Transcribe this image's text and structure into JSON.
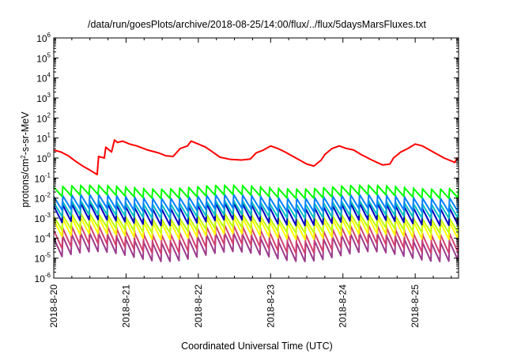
{
  "chart_data": {
    "type": "line",
    "title": "/data/run/goesPlots/archive/2018-08-25/14:00/flux/../flux/5daysMarsFluxes.txt",
    "xlabel": "Coordinated Universal Time (UTC)",
    "ylabel": {
      "pre": "protons/cm",
      "sup": "2",
      "post": "-s-sr-MeV"
    },
    "x_range_days": [
      0,
      5.6
    ],
    "x_ticks": [
      {
        "day": 0,
        "label": "2018-8-20"
      },
      {
        "day": 1,
        "label": "2018-8-21"
      },
      {
        "day": 2,
        "label": "2018-8-22"
      },
      {
        "day": 3,
        "label": "2018-8-23"
      },
      {
        "day": 4,
        "label": "2018-8-24"
      },
      {
        "day": 5,
        "label": "2018-8-25"
      }
    ],
    "y_scale": "log",
    "ylim": [
      1e-06,
      1000000.0
    ],
    "y_ticks": [
      {
        "exp": -6
      },
      {
        "exp": -5
      },
      {
        "exp": -4
      },
      {
        "exp": -3
      },
      {
        "exp": -2
      },
      {
        "exp": -1
      },
      {
        "exp": 0
      },
      {
        "exp": 1
      },
      {
        "exp": 2
      },
      {
        "exp": 3
      },
      {
        "exp": 4
      },
      {
        "exp": 5
      },
      {
        "exp": 6
      }
    ],
    "y_tick_base": "10",
    "grid": false,
    "series": [
      {
        "color": "#ff0000",
        "kind": "smooth",
        "x": [
          0,
          0.1,
          0.2,
          0.3,
          0.4,
          0.5,
          0.6,
          0.62,
          0.7,
          0.72,
          0.8,
          0.84,
          0.88,
          0.95,
          1.05,
          1.15,
          1.3,
          1.45,
          1.55,
          1.65,
          1.75,
          1.85,
          1.9,
          2.0,
          2.1,
          2.2,
          2.3,
          2.45,
          2.6,
          2.72,
          2.8,
          2.9,
          3.0,
          3.1,
          3.2,
          3.35,
          3.5,
          3.6,
          3.7,
          3.75,
          3.85,
          3.95,
          4.05,
          4.15,
          4.25,
          4.4,
          4.55,
          4.65,
          4.7,
          4.8,
          4.9,
          5.0,
          5.1,
          5.25,
          5.4,
          5.55,
          5.58,
          5.6
        ],
        "y": [
          2.5,
          2.0,
          1.3,
          0.7,
          0.4,
          0.25,
          0.15,
          1.2,
          1.0,
          3.5,
          2.0,
          8.0,
          6.0,
          7.0,
          5.0,
          4.0,
          2.5,
          1.8,
          1.3,
          1.2,
          3.0,
          4.0,
          7.0,
          5.0,
          3.5,
          2.0,
          1.1,
          0.85,
          0.8,
          0.9,
          1.8,
          2.5,
          4.0,
          3.0,
          2.0,
          1.0,
          0.5,
          0.4,
          0.8,
          1.5,
          3.0,
          4.0,
          3.0,
          2.5,
          1.5,
          0.8,
          0.45,
          0.5,
          1.0,
          2.0,
          3.0,
          5.0,
          4.0,
          2.0,
          1.0,
          0.6,
          1.0,
          0.9
        ]
      },
      {
        "color": "#00ff00",
        "kind": "sawtooth",
        "peak": 0.035,
        "trough": 0.012,
        "drift_dex": 0.1
      },
      {
        "color": "#0080ff",
        "kind": "sawtooth",
        "peak": 0.012,
        "trough": 0.0025,
        "drift_dex": 0.1
      },
      {
        "color": "#00c0c0",
        "kind": "sawtooth",
        "peak": 0.006,
        "trough": 0.0012,
        "drift_dex": 0.1
      },
      {
        "color": "#0000c0",
        "kind": "sawtooth",
        "peak": 0.004,
        "trough": 0.0006,
        "drift_dex": 0.15
      },
      {
        "color": "#c0ff00",
        "kind": "sawtooth",
        "peak": 0.0012,
        "trough": 0.00025,
        "drift_dex": 0.15
      },
      {
        "color": "#ffff00",
        "kind": "sawtooth",
        "peak": 0.0008,
        "trough": 0.00012,
        "drift_dex": 0.15
      },
      {
        "color": "#d04070",
        "kind": "sawtooth",
        "peak": 0.00025,
        "trough": 3e-05,
        "drift_dex": 0.25
      },
      {
        "color": "#9c3a8c",
        "kind": "sawtooth",
        "peak": 0.0001,
        "trough": 1.2e-05,
        "drift_dex": 0.25
      }
    ],
    "cycles_per_day": 8
  }
}
